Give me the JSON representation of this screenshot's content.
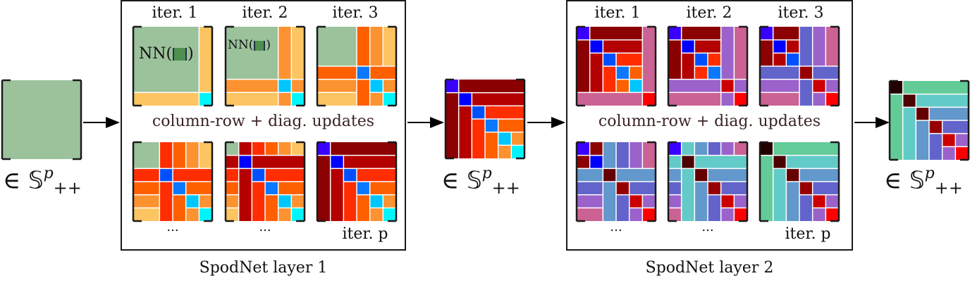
{
  "colors": {
    "green": "#9bc29b",
    "lightorange": "#fdc462",
    "orange": "#fd9230",
    "darkorange": "#fe6000",
    "redorange": "#ff2d00",
    "red": "#b50000",
    "darkred": "#8b0000",
    "cyan": "#00f5fa",
    "skyblue": "#00c6ff",
    "blue": "#0a78ff",
    "midblue": "#0050ff",
    "deepblue": "#0000ff",
    "violet": "#3a00ff",
    "pink": "#cb6294",
    "purple": "#9b62cb",
    "slate": "#6264cb",
    "steel": "#6298cb",
    "teal": "#62cbc8",
    "mint": "#62cb98",
    "brightred": "#ff0000",
    "crimson": "#cc0000",
    "maroon": "#960000",
    "darkmaroon": "#650000",
    "blackred": "#4c0000",
    "nearblack": "#220000"
  },
  "input": {
    "label_prefix": "∈",
    "label_set": "𝕊",
    "label_sup": "p",
    "label_sub": "++"
  },
  "layer1": {
    "caption": "SpodNet layer 1",
    "update_label": "column-row + diag. updates",
    "iters_top": [
      {
        "label": "iter. 1"
      },
      {
        "label": "iter. 2"
      },
      {
        "label": "iter. 3"
      }
    ],
    "iters_bottom": [
      {
        "label": "..."
      },
      {
        "label": "..."
      },
      {
        "label": "iter. p"
      }
    ],
    "nn_label": "NN(",
    "nn_close": ")"
  },
  "middle": {
    "label_prefix": "∈",
    "label_set": "𝕊",
    "label_sup": "p",
    "label_sub": "++"
  },
  "layer2": {
    "caption": "SpodNet layer 2",
    "update_label": "column-row + diag. updates",
    "iters_top": [
      {
        "label": "iter. 1"
      },
      {
        "label": "iter. 2"
      },
      {
        "label": "iter. 3"
      }
    ],
    "iters_bottom": [
      {
        "label": "..."
      },
      {
        "label": "..."
      },
      {
        "label": "iter. p"
      }
    ]
  },
  "output": {
    "label_prefix": "∈",
    "label_set": "𝕊",
    "label_sup": "p",
    "label_sub": "++"
  },
  "matrices": {
    "input": [
      [
        0,
        0,
        6,
        6,
        "green"
      ]
    ],
    "l1_it1": [
      [
        0,
        0,
        5,
        5,
        "green"
      ],
      [
        5,
        0,
        1,
        5,
        "lightorange"
      ],
      [
        0,
        5,
        5,
        1,
        "lightorange"
      ],
      [
        5,
        5,
        1,
        1,
        "cyan"
      ]
    ],
    "l1_it2": [
      [
        0,
        0,
        4,
        4,
        "green"
      ],
      [
        4,
        0,
        1,
        4,
        "orange"
      ],
      [
        5,
        0,
        1,
        4,
        "lightorange"
      ],
      [
        0,
        4,
        4,
        1,
        "orange"
      ],
      [
        4,
        4,
        1,
        1,
        "skyblue"
      ],
      [
        5,
        4,
        1,
        1,
        "orange"
      ],
      [
        0,
        5,
        4,
        1,
        "lightorange"
      ],
      [
        4,
        5,
        1,
        1,
        "orange"
      ],
      [
        5,
        5,
        1,
        1,
        "cyan"
      ]
    ],
    "l1_it3": [
      [
        0,
        0,
        3,
        3,
        "green"
      ],
      [
        3,
        0,
        1,
        3,
        "darkorange"
      ],
      [
        4,
        0,
        1,
        3,
        "orange"
      ],
      [
        5,
        0,
        1,
        3,
        "lightorange"
      ],
      [
        0,
        3,
        3,
        1,
        "darkorange"
      ],
      [
        3,
        3,
        1,
        1,
        "blue"
      ],
      [
        4,
        3,
        2,
        1,
        "darkorange"
      ],
      [
        0,
        4,
        3,
        1,
        "orange"
      ],
      [
        3,
        4,
        1,
        2,
        "darkorange"
      ],
      [
        4,
        4,
        1,
        1,
        "skyblue"
      ],
      [
        5,
        4,
        1,
        1,
        "orange"
      ],
      [
        0,
        5,
        3,
        1,
        "lightorange"
      ],
      [
        4,
        5,
        1,
        1,
        "orange"
      ],
      [
        5,
        5,
        1,
        1,
        "cyan"
      ]
    ],
    "l1_it4": [
      [
        0,
        0,
        2,
        2,
        "green"
      ],
      [
        2,
        0,
        1,
        2,
        "redorange"
      ],
      [
        3,
        0,
        1,
        2,
        "darkorange"
      ],
      [
        4,
        0,
        1,
        2,
        "orange"
      ],
      [
        5,
        0,
        1,
        2,
        "lightorange"
      ],
      [
        0,
        2,
        2,
        1,
        "redorange"
      ],
      [
        2,
        2,
        1,
        1,
        "midblue"
      ],
      [
        3,
        2,
        3,
        1,
        "redorange"
      ],
      [
        0,
        3,
        2,
        1,
        "darkorange"
      ],
      [
        2,
        3,
        1,
        3,
        "redorange"
      ],
      [
        3,
        3,
        1,
        1,
        "blue"
      ],
      [
        4,
        3,
        2,
        1,
        "darkorange"
      ],
      [
        0,
        4,
        2,
        1,
        "orange"
      ],
      [
        3,
        4,
        1,
        2,
        "darkorange"
      ],
      [
        4,
        4,
        1,
        1,
        "skyblue"
      ],
      [
        5,
        4,
        1,
        1,
        "orange"
      ],
      [
        0,
        5,
        2,
        1,
        "lightorange"
      ],
      [
        4,
        5,
        1,
        1,
        "orange"
      ],
      [
        5,
        5,
        1,
        1,
        "cyan"
      ]
    ],
    "l1_it5": [
      [
        0,
        0,
        1,
        1,
        "green"
      ],
      [
        1,
        0,
        1,
        1,
        "red"
      ],
      [
        2,
        0,
        1,
        1,
        "redorange"
      ],
      [
        3,
        0,
        1,
        1,
        "darkorange"
      ],
      [
        4,
        0,
        1,
        1,
        "orange"
      ],
      [
        5,
        0,
        1,
        1,
        "lightorange"
      ],
      [
        0,
        1,
        1,
        1,
        "red"
      ],
      [
        1,
        1,
        1,
        1,
        "deepblue"
      ],
      [
        2,
        1,
        4,
        1,
        "red"
      ],
      [
        0,
        2,
        1,
        1,
        "redorange"
      ],
      [
        1,
        2,
        1,
        4,
        "red"
      ],
      [
        2,
        2,
        1,
        1,
        "midblue"
      ],
      [
        3,
        2,
        3,
        1,
        "redorange"
      ],
      [
        0,
        3,
        1,
        1,
        "darkorange"
      ],
      [
        2,
        3,
        1,
        3,
        "redorange"
      ],
      [
        3,
        3,
        1,
        1,
        "blue"
      ],
      [
        4,
        3,
        2,
        1,
        "darkorange"
      ],
      [
        0,
        4,
        1,
        1,
        "orange"
      ],
      [
        3,
        4,
        1,
        2,
        "darkorange"
      ],
      [
        4,
        4,
        1,
        1,
        "skyblue"
      ],
      [
        5,
        4,
        1,
        1,
        "orange"
      ],
      [
        0,
        5,
        1,
        1,
        "lightorange"
      ],
      [
        4,
        5,
        1,
        1,
        "orange"
      ],
      [
        5,
        5,
        1,
        1,
        "cyan"
      ]
    ],
    "l1_itp": [
      [
        0,
        0,
        1,
        1,
        "violet"
      ],
      [
        1,
        0,
        5,
        1,
        "darkred"
      ],
      [
        0,
        1,
        1,
        5,
        "darkred"
      ],
      [
        1,
        1,
        1,
        1,
        "deepblue"
      ],
      [
        2,
        1,
        4,
        1,
        "red"
      ],
      [
        1,
        2,
        1,
        4,
        "red"
      ],
      [
        2,
        2,
        1,
        1,
        "midblue"
      ],
      [
        3,
        2,
        3,
        1,
        "redorange"
      ],
      [
        2,
        3,
        1,
        3,
        "redorange"
      ],
      [
        3,
        3,
        1,
        1,
        "blue"
      ],
      [
        4,
        3,
        2,
        1,
        "darkorange"
      ],
      [
        3,
        4,
        1,
        2,
        "darkorange"
      ],
      [
        4,
        4,
        1,
        1,
        "skyblue"
      ],
      [
        5,
        4,
        1,
        1,
        "orange"
      ],
      [
        4,
        5,
        1,
        1,
        "orange"
      ],
      [
        5,
        5,
        1,
        1,
        "cyan"
      ]
    ],
    "l2_it1": [
      [
        0,
        0,
        1,
        1,
        "violet"
      ],
      [
        1,
        0,
        4,
        1,
        "darkred"
      ],
      [
        5,
        0,
        1,
        5,
        "pink"
      ],
      [
        0,
        1,
        1,
        4,
        "darkred"
      ],
      [
        1,
        1,
        1,
        1,
        "deepblue"
      ],
      [
        2,
        1,
        3,
        1,
        "red"
      ],
      [
        1,
        2,
        1,
        3,
        "red"
      ],
      [
        2,
        2,
        1,
        1,
        "midblue"
      ],
      [
        3,
        2,
        2,
        1,
        "redorange"
      ],
      [
        2,
        3,
        1,
        2,
        "redorange"
      ],
      [
        3,
        3,
        1,
        1,
        "blue"
      ],
      [
        4,
        3,
        1,
        1,
        "darkorange"
      ],
      [
        3,
        4,
        1,
        1,
        "darkorange"
      ],
      [
        4,
        4,
        1,
        1,
        "skyblue"
      ],
      [
        0,
        5,
        5,
        1,
        "pink"
      ],
      [
        5,
        5,
        1,
        1,
        "brightred"
      ]
    ],
    "l2_it2": [
      [
        0,
        0,
        1,
        1,
        "violet"
      ],
      [
        1,
        0,
        3,
        1,
        "darkred"
      ],
      [
        4,
        0,
        1,
        4,
        "purple"
      ],
      [
        5,
        0,
        1,
        4,
        "pink"
      ],
      [
        0,
        1,
        1,
        3,
        "darkred"
      ],
      [
        1,
        1,
        1,
        1,
        "deepblue"
      ],
      [
        2,
        1,
        2,
        1,
        "red"
      ],
      [
        1,
        2,
        1,
        2,
        "red"
      ],
      [
        2,
        2,
        1,
        1,
        "midblue"
      ],
      [
        3,
        2,
        1,
        1,
        "redorange"
      ],
      [
        2,
        3,
        1,
        1,
        "redorange"
      ],
      [
        3,
        3,
        1,
        1,
        "blue"
      ],
      [
        0,
        4,
        4,
        1,
        "purple"
      ],
      [
        4,
        4,
        1,
        1,
        "crimson"
      ],
      [
        5,
        4,
        1,
        1,
        "purple"
      ],
      [
        0,
        5,
        4,
        1,
        "pink"
      ],
      [
        4,
        5,
        1,
        1,
        "purple"
      ],
      [
        5,
        5,
        1,
        1,
        "brightred"
      ]
    ],
    "l2_it3": [
      [
        0,
        0,
        1,
        1,
        "violet"
      ],
      [
        1,
        0,
        2,
        1,
        "darkred"
      ],
      [
        3,
        0,
        1,
        3,
        "slate"
      ],
      [
        4,
        0,
        1,
        3,
        "purple"
      ],
      [
        5,
        0,
        1,
        3,
        "pink"
      ],
      [
        0,
        1,
        1,
        2,
        "darkred"
      ],
      [
        1,
        1,
        1,
        1,
        "deepblue"
      ],
      [
        2,
        1,
        1,
        1,
        "red"
      ],
      [
        1,
        2,
        1,
        1,
        "red"
      ],
      [
        2,
        2,
        1,
        1,
        "midblue"
      ],
      [
        0,
        3,
        3,
        1,
        "slate"
      ],
      [
        3,
        3,
        1,
        1,
        "maroon"
      ],
      [
        4,
        3,
        2,
        1,
        "slate"
      ],
      [
        0,
        4,
        3,
        1,
        "purple"
      ],
      [
        3,
        4,
        1,
        2,
        "slate"
      ],
      [
        4,
        4,
        1,
        1,
        "crimson"
      ],
      [
        5,
        4,
        1,
        1,
        "purple"
      ],
      [
        0,
        5,
        3,
        1,
        "pink"
      ],
      [
        4,
        5,
        1,
        1,
        "purple"
      ],
      [
        5,
        5,
        1,
        1,
        "brightred"
      ]
    ],
    "l2_it4": [
      [
        0,
        0,
        1,
        1,
        "violet"
      ],
      [
        1,
        0,
        1,
        1,
        "darkred"
      ],
      [
        2,
        0,
        1,
        2,
        "steel"
      ],
      [
        3,
        0,
        1,
        2,
        "slate"
      ],
      [
        4,
        0,
        1,
        2,
        "purple"
      ],
      [
        5,
        0,
        1,
        2,
        "pink"
      ],
      [
        0,
        1,
        1,
        1,
        "darkred"
      ],
      [
        1,
        1,
        1,
        1,
        "deepblue"
      ],
      [
        0,
        2,
        2,
        1,
        "steel"
      ],
      [
        2,
        2,
        1,
        1,
        "darkmaroon"
      ],
      [
        3,
        2,
        3,
        1,
        "steel"
      ],
      [
        0,
        3,
        2,
        1,
        "slate"
      ],
      [
        2,
        3,
        1,
        3,
        "steel"
      ],
      [
        3,
        3,
        1,
        1,
        "maroon"
      ],
      [
        4,
        3,
        2,
        1,
        "slate"
      ],
      [
        0,
        4,
        2,
        1,
        "purple"
      ],
      [
        3,
        4,
        1,
        2,
        "slate"
      ],
      [
        4,
        4,
        1,
        1,
        "crimson"
      ],
      [
        5,
        4,
        1,
        1,
        "purple"
      ],
      [
        0,
        5,
        2,
        1,
        "pink"
      ],
      [
        4,
        5,
        1,
        1,
        "purple"
      ],
      [
        5,
        5,
        1,
        1,
        "brightred"
      ]
    ],
    "l2_it5": [
      [
        0,
        0,
        1,
        1,
        "violet"
      ],
      [
        1,
        0,
        1,
        1,
        "teal"
      ],
      [
        2,
        0,
        1,
        1,
        "steel"
      ],
      [
        3,
        0,
        1,
        1,
        "slate"
      ],
      [
        4,
        0,
        1,
        1,
        "purple"
      ],
      [
        5,
        0,
        1,
        1,
        "pink"
      ],
      [
        0,
        1,
        1,
        1,
        "teal"
      ],
      [
        1,
        1,
        1,
        1,
        "blackred"
      ],
      [
        2,
        1,
        4,
        1,
        "teal"
      ],
      [
        0,
        2,
        1,
        1,
        "steel"
      ],
      [
        1,
        2,
        1,
        4,
        "teal"
      ],
      [
        2,
        2,
        1,
        1,
        "darkmaroon"
      ],
      [
        3,
        2,
        3,
        1,
        "steel"
      ],
      [
        0,
        3,
        1,
        1,
        "slate"
      ],
      [
        2,
        3,
        1,
        3,
        "steel"
      ],
      [
        3,
        3,
        1,
        1,
        "maroon"
      ],
      [
        4,
        3,
        2,
        1,
        "slate"
      ],
      [
        0,
        4,
        1,
        1,
        "purple"
      ],
      [
        3,
        4,
        1,
        2,
        "slate"
      ],
      [
        4,
        4,
        1,
        1,
        "crimson"
      ],
      [
        5,
        4,
        1,
        1,
        "purple"
      ],
      [
        0,
        5,
        1,
        1,
        "pink"
      ],
      [
        4,
        5,
        1,
        1,
        "purple"
      ],
      [
        5,
        5,
        1,
        1,
        "brightred"
      ]
    ],
    "l2_itp": [
      [
        0,
        0,
        1,
        1,
        "nearblack"
      ],
      [
        1,
        0,
        5,
        1,
        "mint"
      ],
      [
        0,
        1,
        1,
        5,
        "mint"
      ],
      [
        1,
        1,
        1,
        1,
        "blackred"
      ],
      [
        2,
        1,
        4,
        1,
        "teal"
      ],
      [
        1,
        2,
        1,
        4,
        "teal"
      ],
      [
        2,
        2,
        1,
        1,
        "darkmaroon"
      ],
      [
        3,
        2,
        3,
        1,
        "steel"
      ],
      [
        2,
        3,
        1,
        3,
        "steel"
      ],
      [
        3,
        3,
        1,
        1,
        "maroon"
      ],
      [
        4,
        3,
        2,
        1,
        "slate"
      ],
      [
        3,
        4,
        1,
        2,
        "slate"
      ],
      [
        4,
        4,
        1,
        1,
        "crimson"
      ],
      [
        5,
        4,
        1,
        1,
        "purple"
      ],
      [
        4,
        5,
        1,
        1,
        "purple"
      ],
      [
        5,
        5,
        1,
        1,
        "brightred"
      ]
    ],
    "output": [
      [
        0,
        0,
        1,
        1,
        "nearblack"
      ],
      [
        1,
        0,
        5,
        1,
        "mint"
      ],
      [
        0,
        1,
        1,
        5,
        "mint"
      ],
      [
        1,
        1,
        1,
        1,
        "blackred"
      ],
      [
        2,
        1,
        4,
        1,
        "teal"
      ],
      [
        1,
        2,
        1,
        4,
        "teal"
      ],
      [
        2,
        2,
        1,
        1,
        "darkmaroon"
      ],
      [
        3,
        2,
        3,
        1,
        "steel"
      ],
      [
        2,
        3,
        1,
        3,
        "steel"
      ],
      [
        3,
        3,
        1,
        1,
        "maroon"
      ],
      [
        4,
        3,
        2,
        1,
        "slate"
      ],
      [
        3,
        4,
        1,
        2,
        "slate"
      ],
      [
        4,
        4,
        1,
        1,
        "crimson"
      ],
      [
        5,
        4,
        1,
        1,
        "purple"
      ],
      [
        4,
        5,
        1,
        1,
        "purple"
      ],
      [
        5,
        5,
        1,
        1,
        "brightred"
      ]
    ]
  }
}
